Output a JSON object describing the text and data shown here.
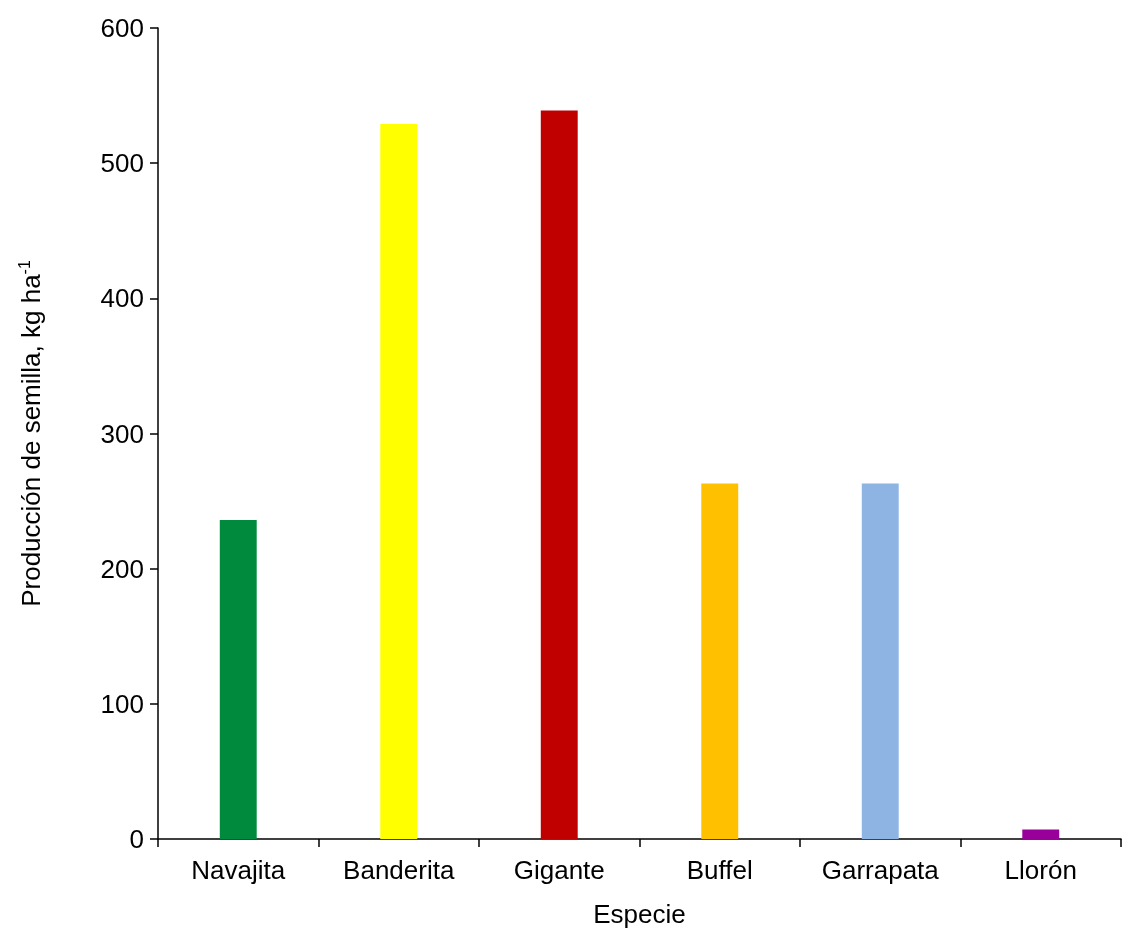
{
  "chart_data": {
    "type": "bar",
    "xlabel": "Especie",
    "ylabel": "Producción de semilla, kg ha$^{-1}$",
    "categories": [
      "Navajita",
      "Banderita",
      "Gigante",
      "Buffel",
      "Garrapata",
      "Llorón"
    ],
    "values": [
      236,
      529,
      539,
      263,
      263,
      7
    ],
    "colors": [
      "#008a3e",
      "#ffff00",
      "#c00000",
      "#ffc000",
      "#8eb4e3",
      "#990099"
    ],
    "ylim": [
      0,
      600
    ],
    "yticks": [
      0,
      100,
      200,
      300,
      400,
      500,
      600
    ],
    "grid": false
  }
}
